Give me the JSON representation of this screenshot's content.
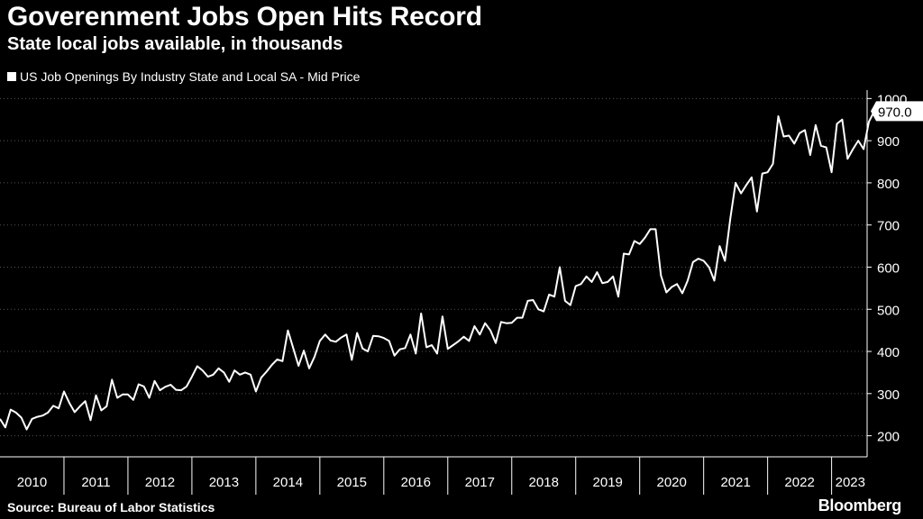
{
  "title": "Goverenment Jobs Open Hits Record",
  "subtitle": "State local jobs available, in thousands",
  "legend_label": "US Job Openings By Industry State and Local SA - Mid Price",
  "source": "Source: Bureau of Labor Statistics",
  "brand": "Bloomberg",
  "colors": {
    "background": "#000000",
    "line": "#ffffff",
    "grid": "#555555"
  },
  "chart_data": {
    "type": "line",
    "title": "Goverenment Jobs Open Hits Record",
    "subtitle": "State local jobs available, in thousands",
    "xlabel": "",
    "ylabel": "",
    "grid": "horizontal dotted",
    "legend_position": "top-left",
    "xlim": [
      "2010-01",
      "2023-08"
    ],
    "ylim": [
      150,
      1020
    ],
    "y_ticks": [
      200,
      300,
      400,
      500,
      600,
      700,
      800,
      900,
      1000
    ],
    "x_tick_labels": [
      "2010",
      "2011",
      "2012",
      "2013",
      "2014",
      "2015",
      "2016",
      "2017",
      "2018",
      "2019",
      "2020",
      "2021",
      "2022",
      "2023"
    ],
    "last_value_label": "970.0",
    "series": [
      {
        "name": "US Job Openings By Industry State and Local SA - Mid Price",
        "start": "2010-01",
        "frequency": "monthly",
        "values": [
          240,
          220,
          262,
          255,
          243,
          215,
          240,
          245,
          248,
          255,
          271,
          265,
          305,
          278,
          256,
          270,
          282,
          237,
          296,
          260,
          270,
          333,
          290,
          298,
          298,
          285,
          322,
          317,
          290,
          330,
          308,
          316,
          321,
          309,
          308,
          317,
          340,
          365,
          355,
          340,
          345,
          360,
          350,
          328,
          355,
          345,
          350,
          345,
          305,
          338,
          352,
          368,
          381,
          377,
          450,
          408,
          366,
          402,
          360,
          387,
          425,
          440,
          426,
          423,
          433,
          440,
          380,
          444,
          407,
          400,
          437,
          436,
          432,
          425,
          390,
          405,
          408,
          440,
          395,
          490,
          410,
          415,
          395,
          483,
          406,
          415,
          424,
          435,
          425,
          460,
          440,
          467,
          450,
          420,
          470,
          467,
          468,
          480,
          480,
          520,
          522,
          500,
          495,
          535,
          530,
          600,
          520,
          510,
          555,
          560,
          578,
          565,
          588,
          562,
          565,
          578,
          530,
          632,
          630,
          662,
          655,
          670,
          690,
          690,
          580,
          540,
          553,
          560,
          538,
          568,
          612,
          620,
          615,
          600,
          568,
          650,
          615,
          715,
          800,
          775,
          795,
          813,
          732,
          822,
          825,
          845,
          958,
          910,
          912,
          893,
          918,
          925,
          866,
          937,
          888,
          884,
          825,
          940,
          950,
          857,
          880,
          900,
          880,
          945,
          970
        ]
      }
    ]
  }
}
